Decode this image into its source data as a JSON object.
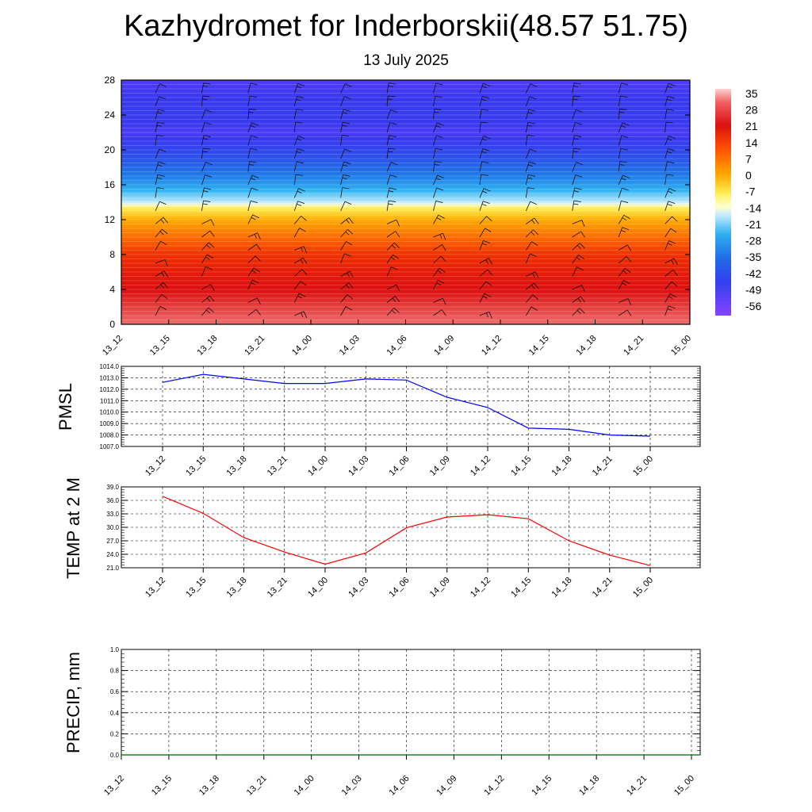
{
  "title": "Kazhydromet for Inderborskii(48.57 51.75)",
  "subtitle": "13 July 2025",
  "colors": {
    "pmsl_line": "#0000ff",
    "temp_line": "#ff0000",
    "precip_line": "#006400",
    "grid": "#000000"
  },
  "chart_data": [
    {
      "type": "heatmap",
      "title": "",
      "x_ticks": [
        "13_12",
        "13_15",
        "13_18",
        "13_21",
        "14_00",
        "14_03",
        "14_06",
        "14_09",
        "14_12",
        "14_15",
        "14_18",
        "14_21",
        "15_00"
      ],
      "y_ticks": [
        0,
        4,
        8,
        12,
        16,
        20,
        24,
        28
      ],
      "ylim": [
        0,
        28
      ],
      "colorbar_labels": [
        35,
        28,
        21,
        14,
        7,
        0,
        -7,
        -14,
        -21,
        -28,
        -35,
        -42,
        -49,
        -56
      ],
      "colorbar_range": [
        -60,
        38
      ],
      "value_profile": [
        {
          "level": 0,
          "value": 32
        },
        {
          "level": 2,
          "value": 28
        },
        {
          "level": 4,
          "value": 24
        },
        {
          "level": 6,
          "value": 21
        },
        {
          "level": 8,
          "value": 16
        },
        {
          "level": 10,
          "value": 10
        },
        {
          "level": 12,
          "value": 4
        },
        {
          "level": 13.5,
          "value": -6
        },
        {
          "level": 14,
          "value": -14
        },
        {
          "level": 16,
          "value": -28
        },
        {
          "level": 18,
          "value": -38
        },
        {
          "level": 20,
          "value": -48
        },
        {
          "level": 22,
          "value": -56
        },
        {
          "level": 24,
          "value": -52
        },
        {
          "level": 26,
          "value": -54
        },
        {
          "level": 28,
          "value": -56
        }
      ],
      "has_wind_barbs": true
    },
    {
      "type": "line",
      "ylabel": "PMSL",
      "x": [
        "13_12",
        "13_15",
        "13_18",
        "13_21",
        "14_00",
        "14_03",
        "14_06",
        "14_09",
        "14_12",
        "14_15",
        "14_18",
        "14_21",
        "15_00"
      ],
      "series": [
        {
          "values": [
            1012.6,
            1013.3,
            1012.9,
            1012.5,
            1012.5,
            1012.9,
            1012.8,
            1011.3,
            1010.4,
            1008.6,
            1008.5,
            1008.0,
            1007.9
          ]
        }
      ],
      "y_ticks": [
        "1007.0",
        "1008.0",
        "1009.0",
        "1010.0",
        "1011.0",
        "1012.0",
        "1013.0",
        "1014.0"
      ],
      "ylim": [
        1007,
        1014
      ],
      "grid": true
    },
    {
      "type": "line",
      "ylabel": "TEMP at 2 M",
      "x": [
        "13_12",
        "13_15",
        "13_18",
        "13_21",
        "14_00",
        "14_03",
        "14_06",
        "14_09",
        "14_12",
        "14_15",
        "14_18",
        "14_21",
        "15_00"
      ],
      "series": [
        {
          "values": [
            36.9,
            33.1,
            27.7,
            24.5,
            21.8,
            24.3,
            29.9,
            32.3,
            32.8,
            31.9,
            27.0,
            23.8,
            21.5
          ]
        }
      ],
      "y_ticks": [
        "21.0",
        "24.0",
        "27.0",
        "30.0",
        "33.0",
        "36.0",
        "39.0"
      ],
      "ylim": [
        21,
        39
      ],
      "grid": true
    },
    {
      "type": "line",
      "ylabel": "PRECIP, mm",
      "x_ticks": [
        "13_12",
        "13_15",
        "13_18",
        "13_21",
        "14_00",
        "14_03",
        "14_06",
        "14_09",
        "14_12",
        "14_15",
        "14_18",
        "14_21",
        "15_00"
      ],
      "series": [
        {
          "values": [
            0,
            0,
            0,
            0,
            0,
            0,
            0,
            0,
            0,
            0,
            0,
            0,
            0
          ]
        }
      ],
      "y_ticks": [
        "0.0",
        "0.2",
        "0.4",
        "0.6",
        "0.8",
        "1.0"
      ],
      "ylim": [
        0,
        1
      ],
      "grid": true
    }
  ]
}
